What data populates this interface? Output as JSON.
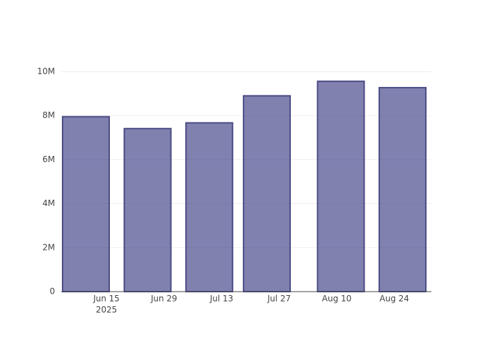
{
  "chart_data": {
    "type": "bar",
    "x": [
      "2025-06-10",
      "2025-06-25",
      "2025-07-10",
      "2025-07-24",
      "2025-08-11",
      "2025-08-26"
    ],
    "values": [
      7950000,
      7410000,
      7670000,
      8900000,
      9560000,
      9270000
    ],
    "color": "rgba(55, 55, 130, 0.63)",
    "edge_color": "#4a4a85",
    "xlim": [
      "2025-06-04",
      "2025-09-02"
    ],
    "xticks": [
      {
        "value": "2025-06-15",
        "label": "Jun 15\n2025"
      },
      {
        "value": "2025-06-29",
        "label": "Jun 29"
      },
      {
        "value": "2025-07-13",
        "label": "Jul 13"
      },
      {
        "value": "2025-07-27",
        "label": "Jul 27"
      },
      {
        "value": "2025-08-10",
        "label": "Aug 10"
      },
      {
        "value": "2025-08-24",
        "label": "Aug 24"
      }
    ],
    "ylim": [
      0,
      10090000
    ],
    "yticks": [
      0,
      {
        "value": 2000000,
        "label": "2M"
      },
      {
        "value": 4000000,
        "label": "4M"
      },
      {
        "value": 6000000,
        "label": "6M"
      },
      {
        "value": 8000000,
        "label": "8M"
      },
      {
        "value": 10000000,
        "label": "10M"
      }
    ],
    "grid": true
  }
}
